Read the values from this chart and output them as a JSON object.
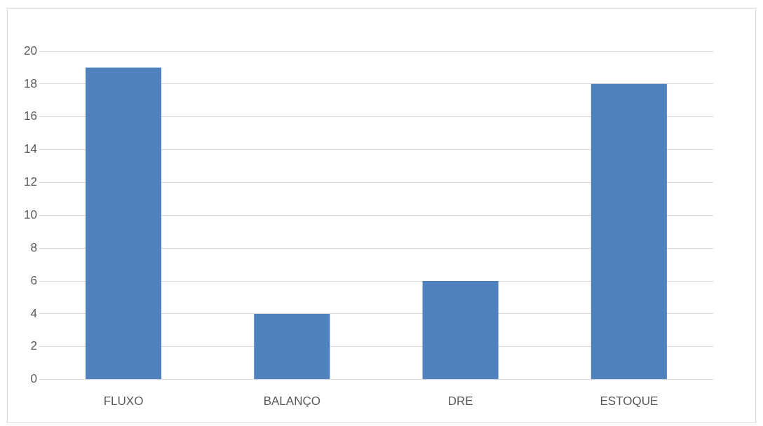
{
  "chart_data": {
    "type": "bar",
    "categories": [
      "FLUXO",
      "BALANÇO",
      "DRE",
      "ESTOQUE"
    ],
    "values": [
      19,
      4,
      6,
      18
    ],
    "color": "#4f81bd",
    "ylim": [
      0,
      20
    ],
    "yticks": [
      0,
      2,
      4,
      6,
      8,
      10,
      12,
      14,
      16,
      18,
      20
    ],
    "grid": "y"
  }
}
